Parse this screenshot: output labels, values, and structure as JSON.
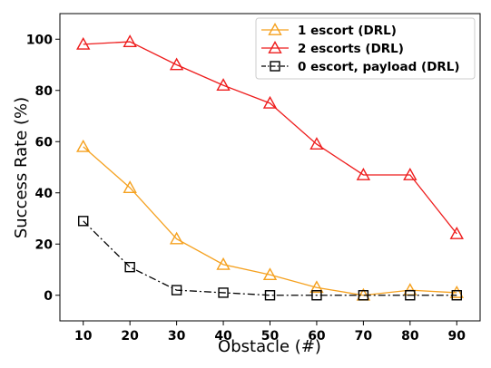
{
  "chart_data": {
    "type": "line",
    "xlabel": "Obstacle (#)",
    "ylabel": "Success Rate (%)",
    "x": [
      10,
      20,
      30,
      40,
      50,
      60,
      70,
      80,
      90
    ],
    "xlim": [
      5,
      95
    ],
    "ylim": [
      -10,
      110
    ],
    "yticks": [
      0,
      20,
      40,
      60,
      80,
      100
    ],
    "grid": false,
    "legend_position": "top-right",
    "series": [
      {
        "name": "1 escort (DRL)",
        "values": [
          58,
          42,
          22,
          12,
          8,
          3,
          0,
          2,
          1
        ],
        "color": "#f5a11f",
        "marker": "triangle",
        "linestyle": "solid"
      },
      {
        "name": "2 escorts (DRL)",
        "values": [
          98,
          99,
          90,
          82,
          75,
          59,
          47,
          47,
          24
        ],
        "color": "#ee1c1c",
        "marker": "triangle",
        "linestyle": "solid"
      },
      {
        "name": "0 escort, payload (DRL)",
        "values": [
          29,
          11,
          2,
          1,
          0,
          0,
          0,
          0,
          0
        ],
        "color": "#000000",
        "marker": "square",
        "linestyle": "dashdot"
      }
    ]
  }
}
